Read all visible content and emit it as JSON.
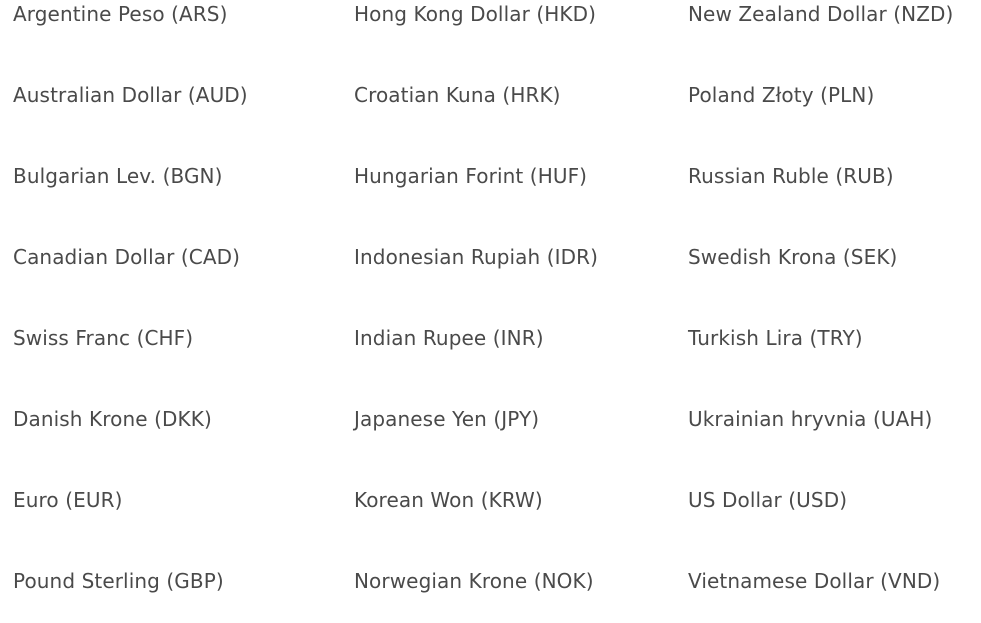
{
  "currencies": {
    "column_1": [
      "Argentine Peso (ARS)",
      "Australian Dollar (AUD)",
      "Bulgarian Lev. (BGN)",
      "Canadian Dollar (CAD)",
      "Swiss Franc (CHF)",
      "Danish Krone (DKK)",
      "Euro (EUR)",
      "Pound Sterling (GBP)"
    ],
    "column_2": [
      "Hong Kong Dollar (HKD)",
      "Croatian Kuna (HRK)",
      "Hungarian Forint (HUF)",
      "Indonesian Rupiah (IDR)",
      "Indian Rupee (INR)",
      "Japanese Yen (JPY)",
      "Korean Won (KRW)",
      "Norwegian Krone (NOK)"
    ],
    "column_3": [
      "New Zealand Dollar (NZD)",
      "Poland Złoty (PLN)",
      "Russian Ruble (RUB)",
      "Swedish Krona (SEK)",
      "Turkish Lira (TRY)",
      "Ukrainian hryvnia (UAH)",
      "US Dollar (USD)",
      "Vietnamese Dollar (VND)"
    ]
  },
  "colors": {
    "text": "#4a4a4a",
    "background": "#ffffff"
  }
}
